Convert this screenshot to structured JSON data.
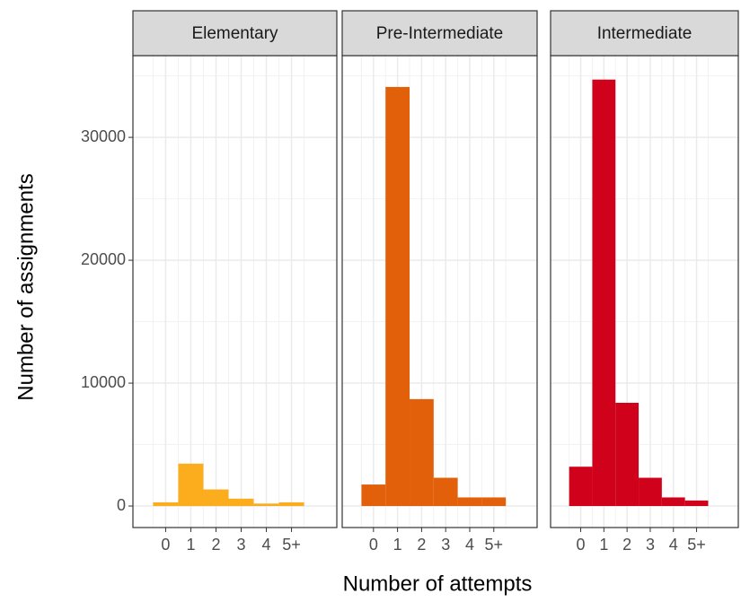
{
  "chart_data": {
    "type": "bar",
    "x_label": "Number of attempts",
    "y_label": "Number of assignments",
    "categories": [
      "0",
      "1",
      "2",
      "3",
      "4",
      "5+"
    ],
    "facets": [
      {
        "title": "Elementary",
        "color": "#fbad1d",
        "values": [
          300,
          3450,
          1350,
          600,
          200,
          300
        ]
      },
      {
        "title": "Pre-Intermediate",
        "color": "#e3600b",
        "values": [
          1750,
          34100,
          8700,
          2300,
          700,
          700
        ]
      },
      {
        "title": "Intermediate",
        "color": "#d0021b",
        "values": [
          3200,
          34700,
          8400,
          2300,
          700,
          450
        ]
      }
    ],
    "ylim": [
      -1750,
      36650
    ],
    "yticks": [
      0,
      10000,
      20000,
      30000
    ],
    "grid": true
  }
}
